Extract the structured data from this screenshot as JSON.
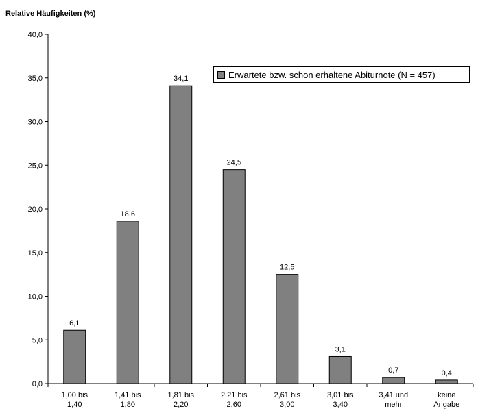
{
  "chart_data": {
    "type": "bar",
    "ylabel": "Relative Häufigkeiten (%)",
    "ylim": [
      0,
      40
    ],
    "yticks": [
      "0,0",
      "5,0",
      "10,0",
      "15,0",
      "20,0",
      "25,0",
      "30,0",
      "35,0",
      "40,0"
    ],
    "categories": [
      [
        "1,00 bis",
        "1,40"
      ],
      [
        "1,41 bis",
        "1,80"
      ],
      [
        "1,81 bis",
        "2,20"
      ],
      [
        "2.21 bis",
        "2,60"
      ],
      [
        "2,61 bis",
        "3,00"
      ],
      [
        "3,01 bis",
        "3,40"
      ],
      [
        "3,41 und",
        "mehr"
      ],
      [
        "keine",
        "Angabe"
      ]
    ],
    "values": [
      6.1,
      18.6,
      34.1,
      24.5,
      12.5,
      3.1,
      0.7,
      0.4
    ],
    "value_labels": [
      "6,1",
      "18,6",
      "34,1",
      "24,5",
      "12,5",
      "3,1",
      "0,7",
      "0,4"
    ],
    "series": [
      {
        "name": "Erwartete bzw. schon erhaltene Abiturnote (N = 457)"
      }
    ],
    "bar_color": "#808080",
    "grid": false,
    "legend_position": "top-right"
  }
}
